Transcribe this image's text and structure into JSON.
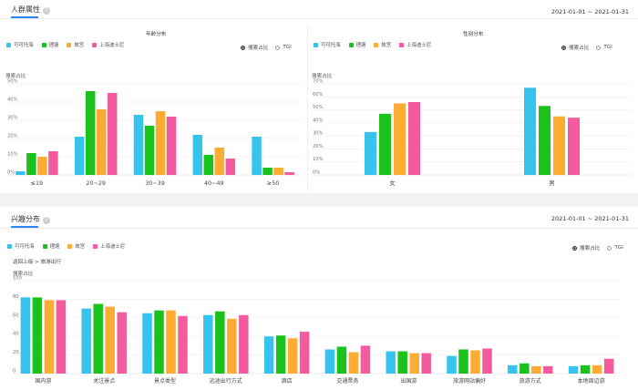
{
  "colors": {
    "accent": "#2b89f3",
    "cyan": "#36c4ee",
    "green": "#1cc21c",
    "orange": "#fcab33",
    "pink": "#f35b9e"
  },
  "crowd": {
    "title": "人群属性",
    "help_icon": "?",
    "date_range": "2021-01-01 ~ 2021-01-31",
    "age": {
      "title": "年龄分布",
      "ylabel": "搜索占比",
      "radio_share": "搜索占比",
      "radio_tgi": "TGI"
    },
    "gender": {
      "title": "性别分布",
      "ylabel": "搜索占比",
      "radio_share": "搜索占比",
      "radio_tgi": "TGI"
    }
  },
  "interest": {
    "title": "兴趣分布",
    "help_icon": "?",
    "date_range": "2021-01-01 ~ 2021-01-31",
    "breadcrumb": "返回上级 > 旅游出行",
    "ylabel": "搜索占比",
    "radio_share": "搜索占比",
    "radio_tgi": "TGI"
  },
  "legend": [
    {
      "name": "可可托海",
      "color": "#36c4ee"
    },
    {
      "name": "理塘",
      "color": "#1cc21c"
    },
    {
      "name": "故宫",
      "color": "#fcab33"
    },
    {
      "name": "上海迪士尼",
      "color": "#f35b9e"
    }
  ],
  "chart_data": [
    {
      "type": "bar",
      "title": "年龄分布",
      "ylabel": "搜索占比",
      "ylim": [
        0,
        50
      ],
      "yticks": [
        "0%",
        "10%",
        "20%",
        "30%",
        "40%",
        "50%"
      ],
      "categories": [
        "≤19",
        "20~29",
        "30~39",
        "40~49",
        "≥50"
      ],
      "series": [
        {
          "name": "可可托海",
          "values": [
            2,
            21,
            33,
            22,
            21
          ]
        },
        {
          "name": "理塘",
          "values": [
            12,
            46,
            27,
            11,
            4
          ]
        },
        {
          "name": "故宫",
          "values": [
            10,
            36,
            35,
            15,
            4
          ]
        },
        {
          "name": "上海迪士尼",
          "values": [
            13,
            45,
            32,
            9,
            1.5
          ]
        }
      ]
    },
    {
      "type": "bar",
      "title": "性别分布",
      "ylabel": "搜索占比",
      "ylim": [
        0,
        70
      ],
      "yticks": [
        "0%",
        "10%",
        "20%",
        "30%",
        "40%",
        "50%",
        "60%",
        "70%"
      ],
      "categories": [
        "女",
        "男"
      ],
      "series": [
        {
          "name": "可可托海",
          "values": [
            33,
            67
          ]
        },
        {
          "name": "理塘",
          "values": [
            47,
            53
          ]
        },
        {
          "name": "故宫",
          "values": [
            55,
            45
          ]
        },
        {
          "name": "上海迪士尼",
          "values": [
            56,
            44
          ]
        }
      ]
    },
    {
      "type": "bar",
      "title": "兴趣分布",
      "ylabel": "搜索占比",
      "ylim": [
        0,
        100
      ],
      "yticks": [
        "0",
        "20",
        "40",
        "60",
        "80",
        "100"
      ],
      "categories": [
        "国内游",
        "关注景点",
        "景点类型",
        "远途出行方式",
        "酒店",
        "交通票务",
        "出国游",
        "旅游网站偏好",
        "旅游方式",
        "本地周边游"
      ],
      "series": [
        {
          "name": "可可托海",
          "values": [
            82,
            70,
            65,
            63,
            40,
            26,
            24,
            19,
            9,
            8
          ]
        },
        {
          "name": "理塘",
          "values": [
            82,
            75,
            68,
            67,
            41,
            29,
            24,
            26,
            11,
            9
          ]
        },
        {
          "name": "故宫",
          "values": [
            79,
            72,
            68,
            59,
            38,
            23,
            22,
            25,
            8,
            9
          ]
        },
        {
          "name": "上海迪士尼",
          "values": [
            79,
            66,
            62,
            63,
            45,
            30,
            22,
            27,
            8,
            16
          ]
        }
      ]
    }
  ]
}
